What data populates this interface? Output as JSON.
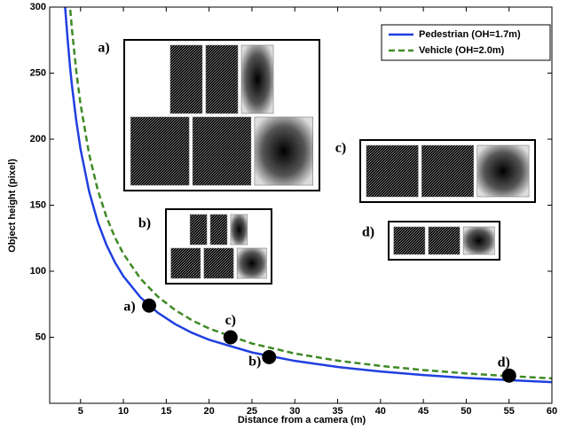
{
  "chart_data": {
    "type": "line",
    "xlabel": "Distance from a camera (m)",
    "ylabel": "Object height (pixel)",
    "x": [
      3.2,
      3.5,
      3.8,
      4,
      4.5,
      5,
      6,
      7,
      8,
      9,
      10,
      12,
      14,
      16,
      18,
      20,
      25,
      30,
      35,
      40,
      45,
      50,
      55,
      60
    ],
    "series": [
      {
        "name": "Pedestrian (OH=1.7m)",
        "color": "#1f3fe0",
        "dash": "solid",
        "values": [
          300,
          275,
          253,
          240.5,
          214,
          192.4,
          160.4,
          137.4,
          120.3,
          106.9,
          96.2,
          80.2,
          68.7,
          60.1,
          53.4,
          48.1,
          38.5,
          32.1,
          27.5,
          24.1,
          21.4,
          19.2,
          17.5,
          16.0
        ]
      },
      {
        "name": "Vehicle (OH=2.0m)",
        "color": "#3f8a25",
        "dash": "dashed",
        "values": [
          null,
          null,
          298,
          283,
          251.6,
          226.4,
          188.7,
          161.7,
          141.5,
          125.8,
          113.2,
          94.3,
          80.9,
          70.8,
          62.9,
          56.6,
          45.3,
          37.7,
          32.3,
          28.3,
          25.2,
          22.6,
          20.6,
          18.9
        ]
      }
    ],
    "points": [
      {
        "label": "a)",
        "x": 13,
        "y": 74
      },
      {
        "label": "b)",
        "x": 27,
        "y": 35
      },
      {
        "label": "c)",
        "x": 22.5,
        "y": 50
      },
      {
        "label": "d)",
        "x": 55,
        "y": 21
      }
    ],
    "insets": [
      "a)",
      "b)",
      "c)",
      "d)"
    ],
    "xlim": [
      1.4,
      60
    ],
    "ylim": [
      0,
      300
    ],
    "xticks": [
      5,
      10,
      15,
      20,
      25,
      30,
      35,
      40,
      45,
      50,
      55,
      60
    ],
    "yticks": [
      50,
      100,
      150,
      200,
      250,
      300
    ],
    "legend": "upper right"
  }
}
